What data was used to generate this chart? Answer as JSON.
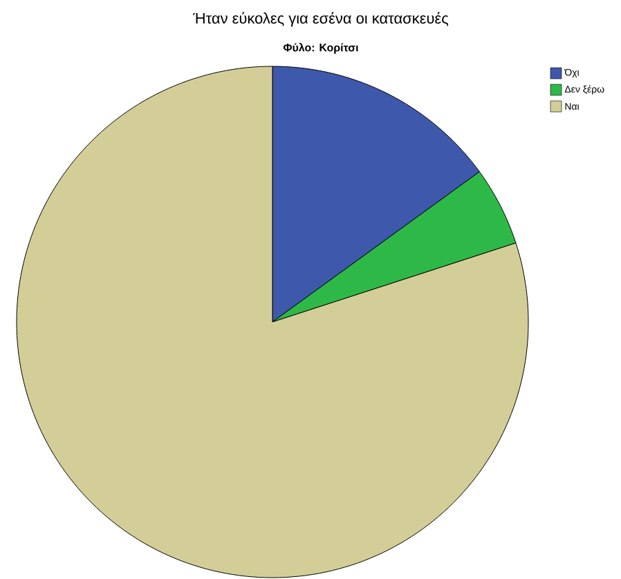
{
  "chart_data": {
    "type": "pie",
    "title": "Ήταν εύκολες για εσένα οι κατασκευές",
    "subtitle": "Φύλο: Κορίτσι",
    "categories": [
      "Όχι",
      "Δεν ξέρω",
      "Ναι"
    ],
    "values": [
      15,
      5,
      80
    ],
    "colors": [
      "#3e58ac",
      "#2eb848",
      "#d3ce97"
    ],
    "legend": "top right"
  }
}
